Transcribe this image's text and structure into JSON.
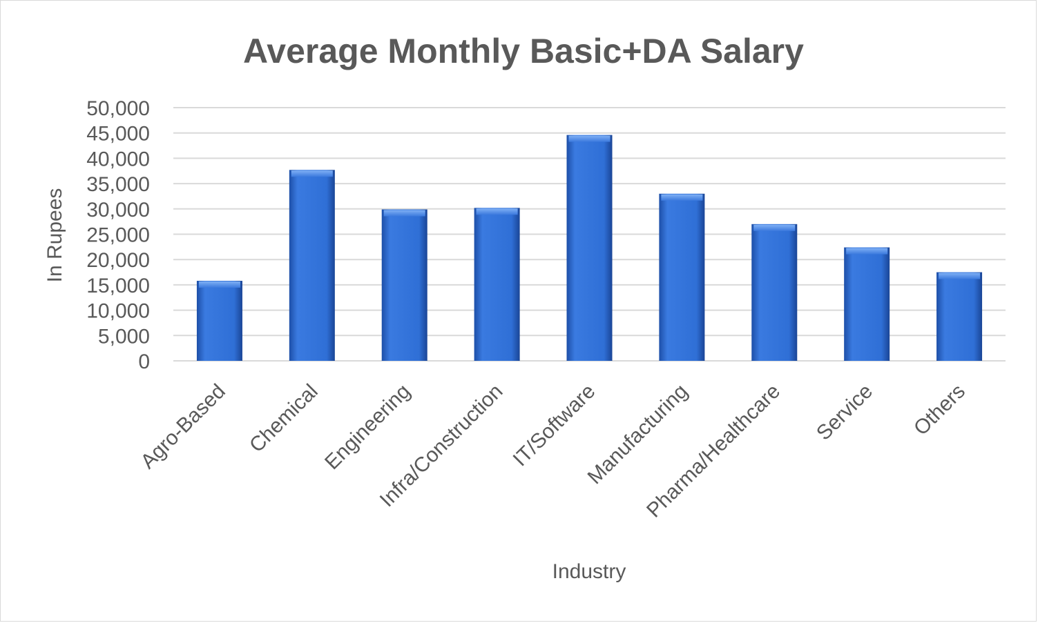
{
  "chart_data": {
    "type": "bar",
    "title": "Average Monthly Basic+DA Salary",
    "xlabel": "Industry",
    "ylabel": "In Rupees",
    "ylim": [
      0,
      50000
    ],
    "ytick_step": 5000,
    "yticks": [
      "0",
      "5,000",
      "10,000",
      "15,000",
      "20,000",
      "25,000",
      "30,000",
      "35,000",
      "40,000",
      "45,000",
      "50,000"
    ],
    "grid": true,
    "categories": [
      "Agro-Based",
      "Chemical",
      "Engineering",
      "Infra/Construction",
      "IT/Software",
      "Manufacturing",
      "Pharma/Healthcare",
      "Service",
      "Others"
    ],
    "series": [
      {
        "values": [
          15800,
          37700,
          29900,
          30200,
          44600,
          33000,
          27000,
          22400,
          17500
        ]
      }
    ],
    "colors": {
      "bar": "#2f6fd6",
      "bar_dark": "#1d4fa8",
      "bar_light": "#5a92ea",
      "grid": "#d9d9d9",
      "text": "#595959"
    }
  }
}
